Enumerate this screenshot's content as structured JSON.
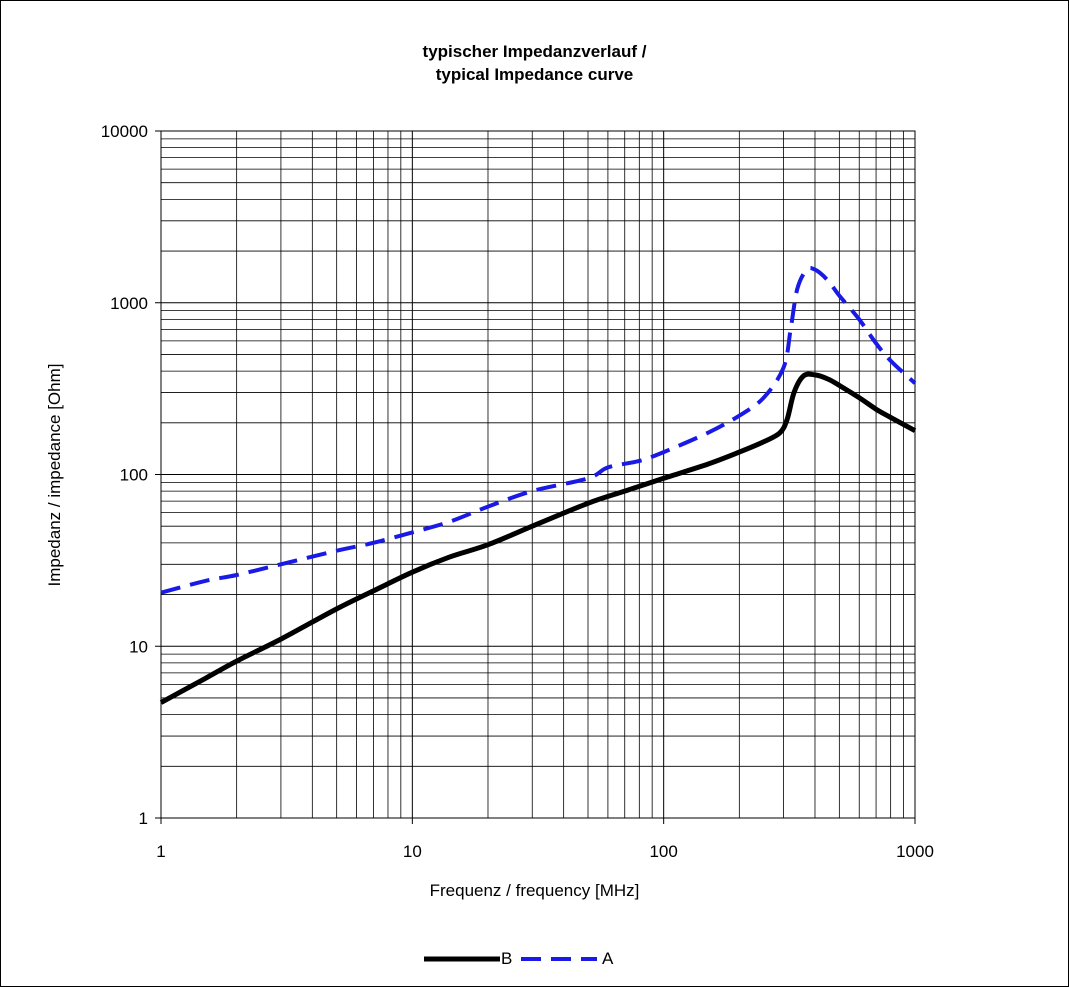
{
  "chart_data": {
    "type": "line",
    "title_line1": "typischer Impedanzverlauf /",
    "title_line2": "typical Impedance curve",
    "xlabel": "Frequenz / frequency [MHz]",
    "ylabel": "Impedanz / impedance [Ohm]",
    "x_scale": "log",
    "y_scale": "log",
    "xlim": [
      1,
      1000
    ],
    "ylim": [
      1,
      10000
    ],
    "x_ticks": [
      "1",
      "10",
      "100",
      "1000"
    ],
    "y_ticks": [
      "1",
      "10",
      "100",
      "1000",
      "10000"
    ],
    "grid": true,
    "legend_position": "bottom",
    "series": [
      {
        "name": "B",
        "style": "solid",
        "color": "#000000",
        "x": [
          1,
          1.5,
          2,
          3,
          5,
          7,
          10,
          14,
          20,
          30,
          50,
          70,
          100,
          150,
          200,
          250,
          290,
          310,
          330,
          360,
          400,
          450,
          500,
          600,
          700,
          800,
          1000
        ],
        "y": [
          4.7,
          6.5,
          8.2,
          11,
          16.5,
          21,
          27,
          33,
          39,
          50,
          68,
          80,
          95,
          115,
          135,
          155,
          175,
          210,
          300,
          375,
          380,
          360,
          330,
          280,
          240,
          215,
          180
        ]
      },
      {
        "name": "A",
        "style": "dashed",
        "color": "#1a1ae6",
        "x": [
          1,
          1.5,
          2,
          3,
          5,
          7,
          10,
          14,
          20,
          30,
          50,
          60,
          80,
          100,
          150,
          200,
          250,
          300,
          320,
          340,
          370,
          400,
          450,
          500,
          600,
          700,
          800,
          1000
        ],
        "y": [
          20.5,
          24,
          26,
          30,
          36,
          40,
          46,
          53,
          65,
          80,
          95,
          110,
          120,
          135,
          175,
          220,
          280,
          420,
          700,
          1200,
          1550,
          1560,
          1350,
          1100,
          800,
          580,
          460,
          340
        ]
      }
    ]
  }
}
